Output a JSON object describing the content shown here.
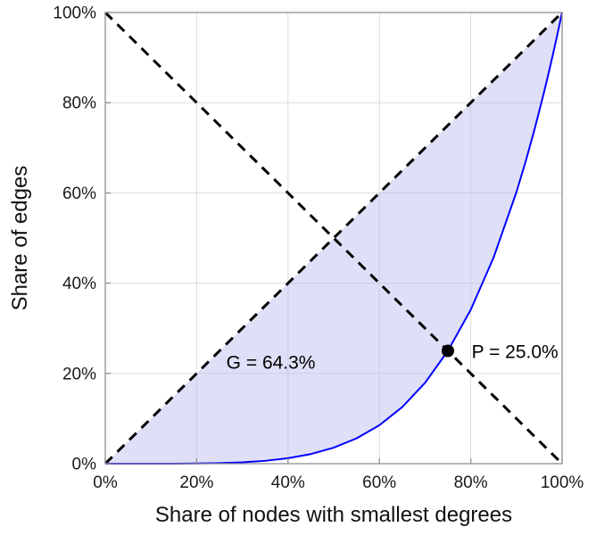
{
  "chart_data": {
    "type": "line",
    "title": "",
    "xlabel": "Share of nodes with smallest degrees",
    "ylabel": "Share of edges",
    "xlim": [
      0,
      100
    ],
    "ylim": [
      0,
      100
    ],
    "x_ticks": [
      0,
      20,
      40,
      60,
      80,
      100
    ],
    "x_tick_labels": [
      "0%",
      "20%",
      "40%",
      "60%",
      "80%",
      "100%"
    ],
    "y_ticks": [
      0,
      20,
      40,
      60,
      80,
      100
    ],
    "y_tick_labels": [
      "0%",
      "20%",
      "40%",
      "60%",
      "80%",
      "100%"
    ],
    "grid": true,
    "legend": "none",
    "colors": {
      "grid": "#dcdcdc",
      "frame": "#8f8f8f",
      "curve": "#0000ff",
      "dashed": "#000000",
      "fill": "#b8b8ee",
      "point": "#000000"
    },
    "series": [
      {
        "name": "equality-diagonal",
        "color": "#000000",
        "style": "dashed",
        "x": [
          0,
          100
        ],
        "y": [
          0,
          100
        ]
      },
      {
        "name": "anti-diagonal",
        "color": "#000000",
        "style": "dashed",
        "x": [
          0,
          100
        ],
        "y": [
          100,
          0
        ]
      },
      {
        "name": "lorenz-curve",
        "color": "#0000ff",
        "style": "solid",
        "x": [
          0,
          5,
          10,
          15,
          20,
          25,
          30,
          35,
          40,
          45,
          50,
          55,
          60,
          65,
          70,
          75,
          80,
          85,
          90,
          92,
          94,
          96,
          97,
          98,
          99,
          100
        ],
        "y": [
          0,
          0,
          0,
          0.01,
          0.04,
          0.13,
          0.3,
          0.63,
          1.21,
          2.13,
          3.54,
          5.61,
          8.52,
          12.54,
          17.92,
          25.0,
          34.11,
          45.68,
          60.18,
          66.9,
          74.21,
          82.14,
          86.34,
          90.72,
          95.27,
          100
        ]
      }
    ],
    "fill_between": {
      "upper": "equality-diagonal",
      "lower": "lorenz-curve",
      "color": "#b8b8ee",
      "opacity": 0.45
    },
    "point": {
      "x": 75,
      "y": 25,
      "label": "P = 25.0%",
      "color": "#000000"
    },
    "gini": "G = 64.3%",
    "annotations": [
      {
        "name": "gini-label",
        "text": "G = 64.3%",
        "x": 26.5,
        "y": 21,
        "anchor": "start"
      },
      {
        "name": "point-label",
        "text": "P = 25.0%",
        "x": 80.2,
        "y": 23.4,
        "anchor": "start"
      }
    ]
  }
}
